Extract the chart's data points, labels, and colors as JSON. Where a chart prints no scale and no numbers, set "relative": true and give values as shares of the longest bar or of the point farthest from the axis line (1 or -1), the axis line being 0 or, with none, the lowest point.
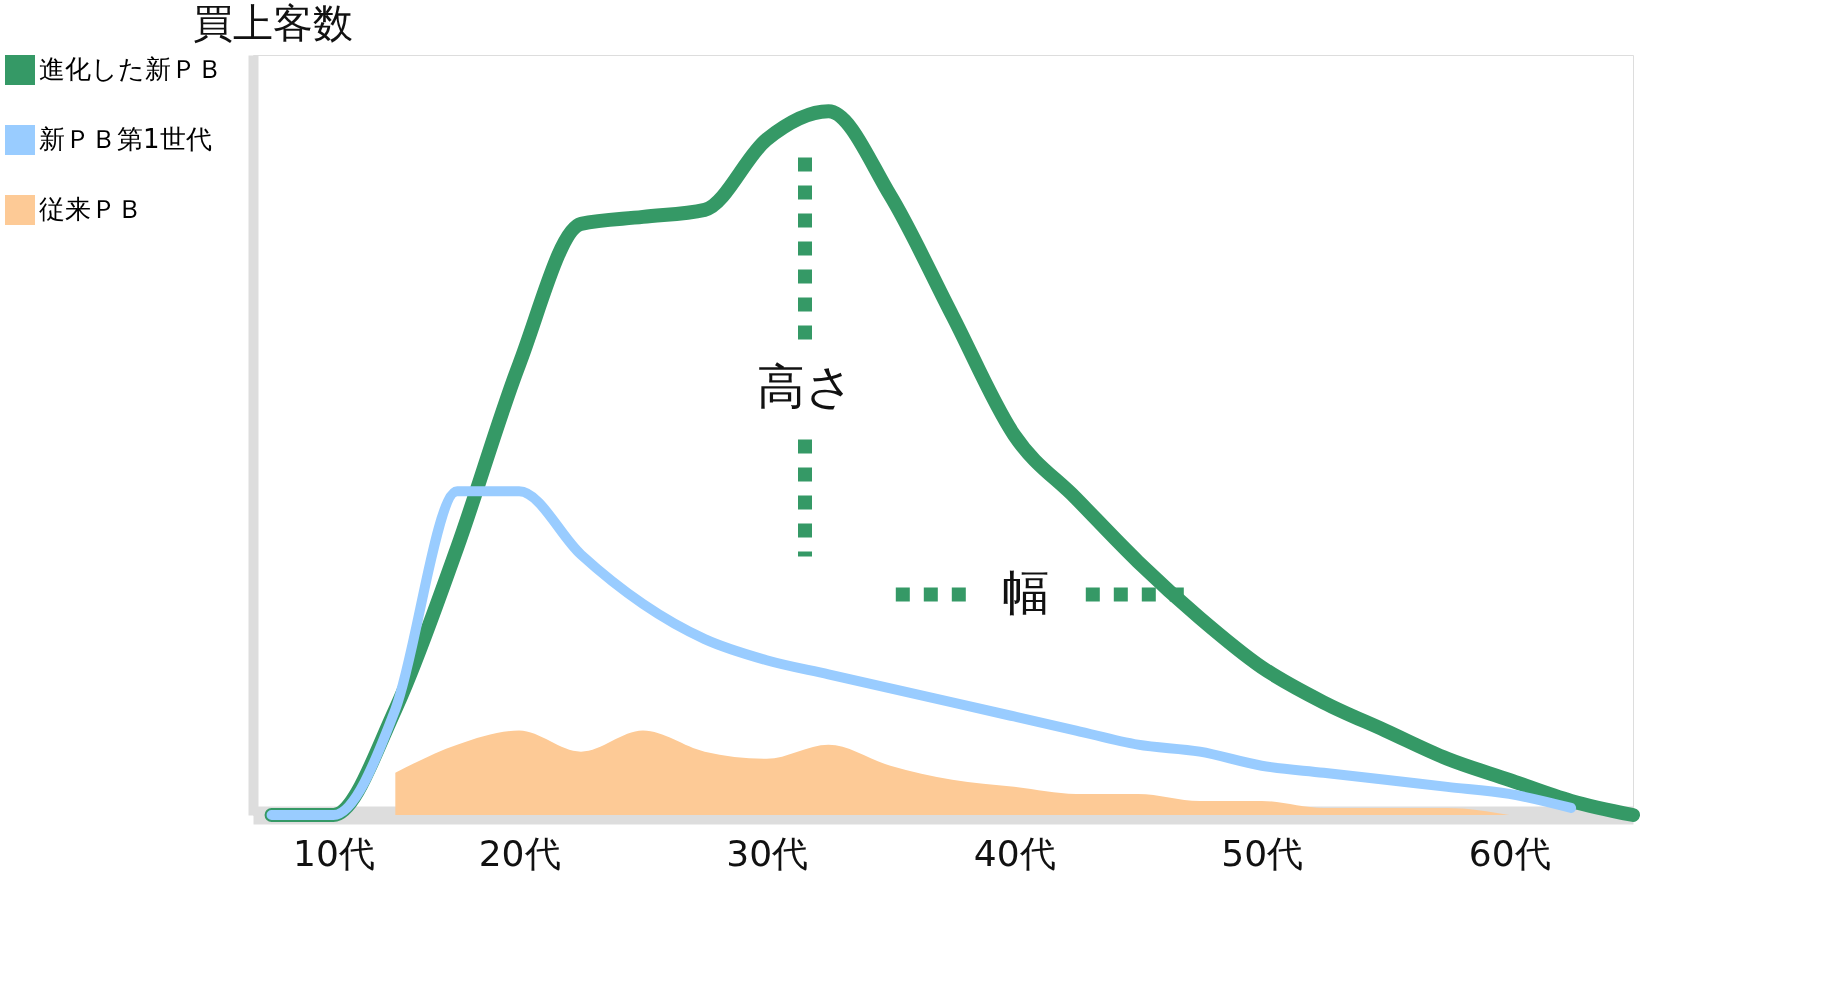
{
  "chart_data": {
    "type": "line",
    "relative": true,
    "ylabel": "買上客数",
    "categories": [
      null,
      "10代",
      null,
      null,
      "20代",
      null,
      null,
      null,
      "30代",
      null,
      null,
      null,
      "40代",
      null,
      null,
      null,
      "50代",
      null,
      null,
      null,
      "60代",
      null,
      null
    ],
    "series": [
      {
        "name": "進化した新ＰＢ",
        "color": "#359966",
        "values": [
          0,
          0,
          0.15,
          0.38,
          0.64,
          0.84,
          0.85,
          0.86,
          0.96,
          1,
          0.88,
          0.71,
          0.54,
          0.45,
          0.36,
          0.28,
          0.21,
          0.16,
          0.12,
          0.08,
          0.05,
          0.02,
          0
        ]
      },
      {
        "name": "新ＰＢ第1世代",
        "color": "#99ccff",
        "values": [
          0,
          0,
          0.15,
          0.46,
          0.46,
          0.37,
          0.3,
          0.25,
          0.22,
          0.2,
          0.18,
          0.16,
          0.14,
          0.12,
          0.1,
          0.09,
          0.07,
          0.06,
          0.05,
          0.04,
          0.03,
          0.01,
          null
        ]
      },
      {
        "name": "従来ＰＢ",
        "color": "#fdca96",
        "type": "area",
        "values": [
          null,
          null,
          0.06,
          0.1,
          0.12,
          0.09,
          0.12,
          0.09,
          0.08,
          0.1,
          0.07,
          0.05,
          0.04,
          0.03,
          0.03,
          0.02,
          0.02,
          0.01,
          0.01,
          0.01,
          0,
          null,
          null
        ]
      }
    ],
    "annotations": [
      "高さ",
      "幅"
    ],
    "legend": "left",
    "grid": false
  }
}
